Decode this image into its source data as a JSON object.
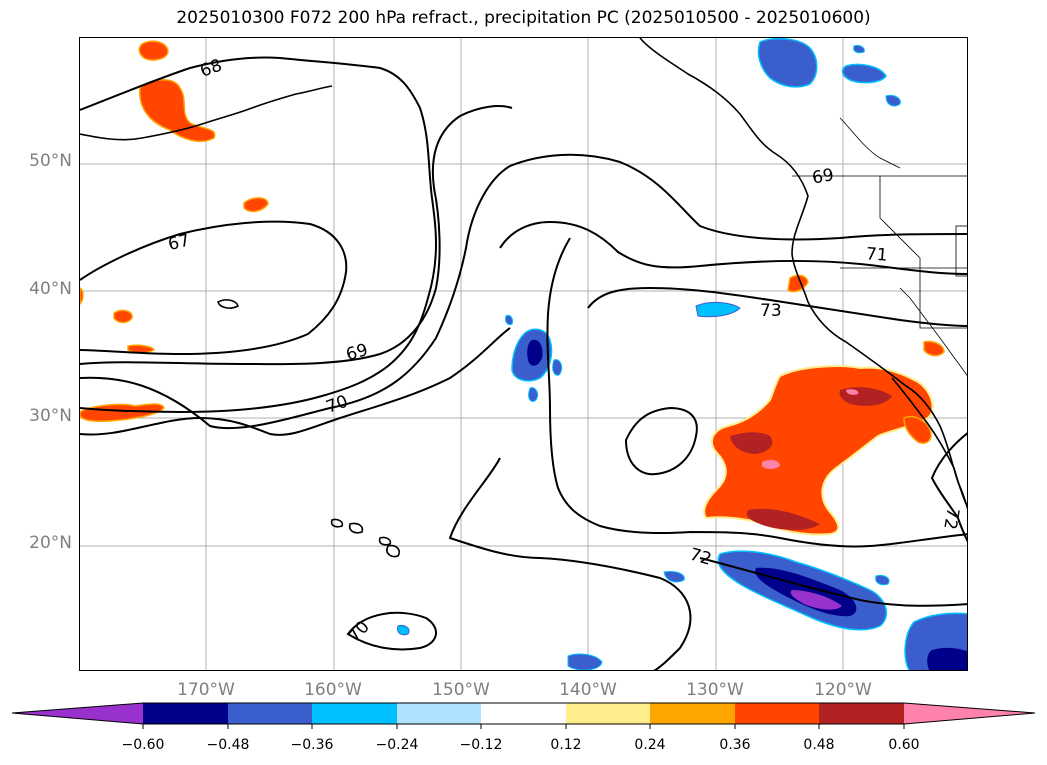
{
  "title": "2025010300 F072 200 hPa refract., precipitation PC (2025010500 - 2025010600)",
  "map": {
    "lat_labels": [
      "50°N",
      "40°N",
      "30°N",
      "20°N"
    ],
    "lon_labels": [
      "170°W",
      "160°W",
      "150°W",
      "140°W",
      "130°W",
      "120°W"
    ],
    "contour_labels": [
      "68",
      "67",
      "69",
      "70",
      "71",
      "73",
      "72",
      "72",
      "70",
      "69"
    ]
  },
  "colorbar": {
    "tick_labels": [
      "−0.60",
      "−0.48",
      "−0.36",
      "−0.24",
      "−0.12",
      "0.12",
      "0.24",
      "0.36",
      "0.48",
      "0.60"
    ],
    "colors": [
      "#9932cc",
      "#00008b",
      "#3a5fcd",
      "#00bfff",
      "#b0e2ff",
      "#ffffff",
      "#ffec8b",
      "#ffa500",
      "#ff4500",
      "#b22222",
      "#ff82ab"
    ],
    "extend": "both"
  },
  "colors": {
    "contour": "#000000",
    "grid": "#b0b0b0",
    "coast": "#000000",
    "axis_labels": "#7f7f7f"
  }
}
